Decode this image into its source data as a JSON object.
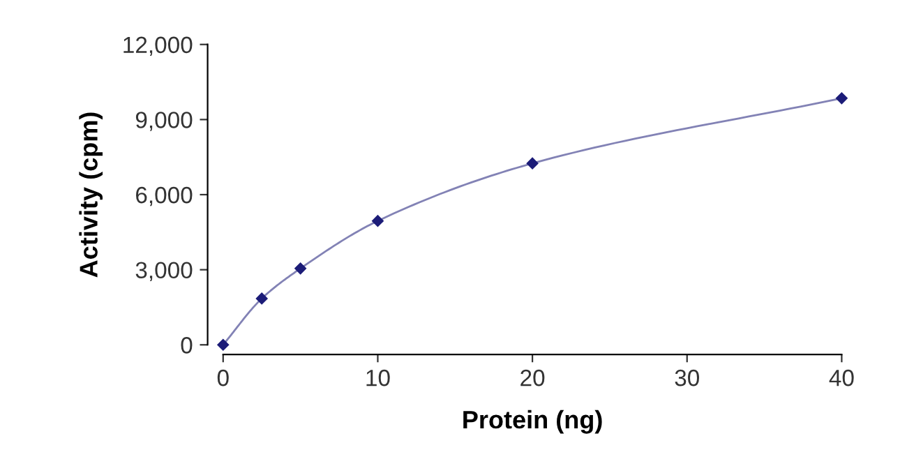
{
  "chart_data": {
    "type": "line",
    "xlabel": "Protein (ng)",
    "ylabel": "Activity (cpm)",
    "x": [
      0,
      2.5,
      5,
      10,
      20,
      40
    ],
    "series": [
      {
        "color": "#1c1c78",
        "values": [
          0,
          1850,
          3050,
          4950,
          7250,
          9850
        ]
      }
    ],
    "xlim": [
      0,
      40
    ],
    "ylim": [
      0,
      12000
    ],
    "xticks": [
      0,
      10,
      20,
      30,
      40
    ],
    "yticks": [
      0,
      {
        "value": 3000,
        "label": "3,000"
      },
      {
        "value": 6000,
        "label": "6,000"
      },
      {
        "value": 9000,
        "label": "9,000"
      },
      {
        "value": 12000,
        "label": "12,000"
      }
    ],
    "marker": "diamond",
    "grid": false,
    "legend": false
  }
}
